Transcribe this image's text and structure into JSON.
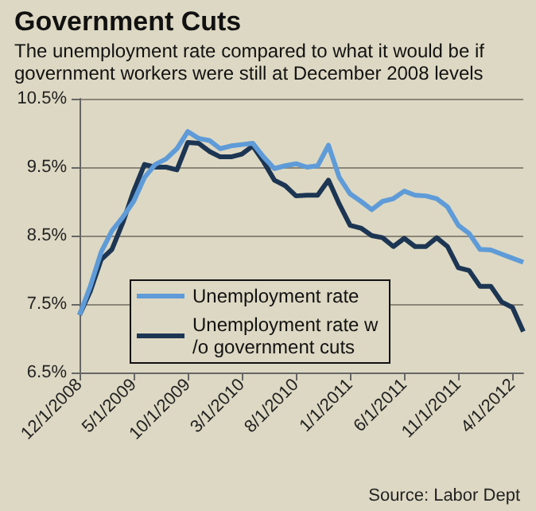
{
  "chart_data": {
    "type": "line",
    "title": "Government Cuts",
    "subtitle": "The unemployment rate compared to what it would be if\ngovernment workers were still at December 2008 levels",
    "categories": [
      "12/1/2008",
      null,
      null,
      null,
      null,
      "5/1/2009",
      null,
      null,
      null,
      null,
      "10/1/2009",
      null,
      null,
      null,
      null,
      "3/1/2010",
      null,
      null,
      null,
      null,
      "8/1/2010",
      null,
      null,
      null,
      null,
      "1/1/2011",
      null,
      null,
      null,
      null,
      "6/1/2011",
      null,
      null,
      null,
      null,
      "11/1/2011",
      null,
      null,
      null,
      null,
      "4/1/2012",
      null
    ],
    "series": [
      {
        "name": "Unemployment rate",
        "color": "#5e9bd8",
        "values": [
          7.34,
          7.76,
          8.26,
          8.57,
          8.77,
          9.0,
          9.35,
          9.54,
          9.62,
          9.77,
          10.02,
          9.92,
          9.89,
          9.77,
          9.81,
          9.83,
          9.85,
          9.65,
          9.48,
          9.52,
          9.55,
          9.5,
          9.52,
          9.82,
          9.35,
          9.11,
          9.0,
          8.88,
          9.0,
          9.04,
          9.15,
          9.09,
          9.08,
          9.04,
          8.92,
          8.65,
          8.53,
          8.3,
          8.29,
          8.23,
          8.17,
          8.11
        ]
      },
      {
        "name": "Unemployment rate w/o government cuts",
        "color": "#1c3553",
        "values": [
          7.34,
          7.69,
          8.15,
          8.3,
          8.69,
          9.15,
          9.54,
          9.5,
          9.5,
          9.46,
          9.86,
          9.85,
          9.73,
          9.65,
          9.65,
          9.69,
          9.81,
          9.58,
          9.31,
          9.23,
          9.08,
          9.09,
          9.09,
          9.31,
          8.96,
          8.65,
          8.61,
          8.5,
          8.47,
          8.34,
          8.46,
          8.34,
          8.34,
          8.47,
          8.34,
          8.03,
          7.99,
          7.76,
          7.76,
          7.53,
          7.45,
          7.1
        ]
      }
    ],
    "ylim": [
      6.5,
      10.5
    ],
    "yticks": [
      {
        "value": 6.5,
        "label": "6.5%"
      },
      {
        "value": 7.5,
        "label": "7.5%"
      },
      {
        "value": 8.5,
        "label": "8.5%"
      },
      {
        "value": 9.5,
        "label": "9.5%"
      },
      {
        "value": 10.5,
        "label": "10.5%"
      }
    ],
    "grid": "y",
    "legend": "bottom left",
    "marker": "none",
    "line_style": "solid",
    "annotations": [
      "Source: Labor Dept"
    ]
  }
}
